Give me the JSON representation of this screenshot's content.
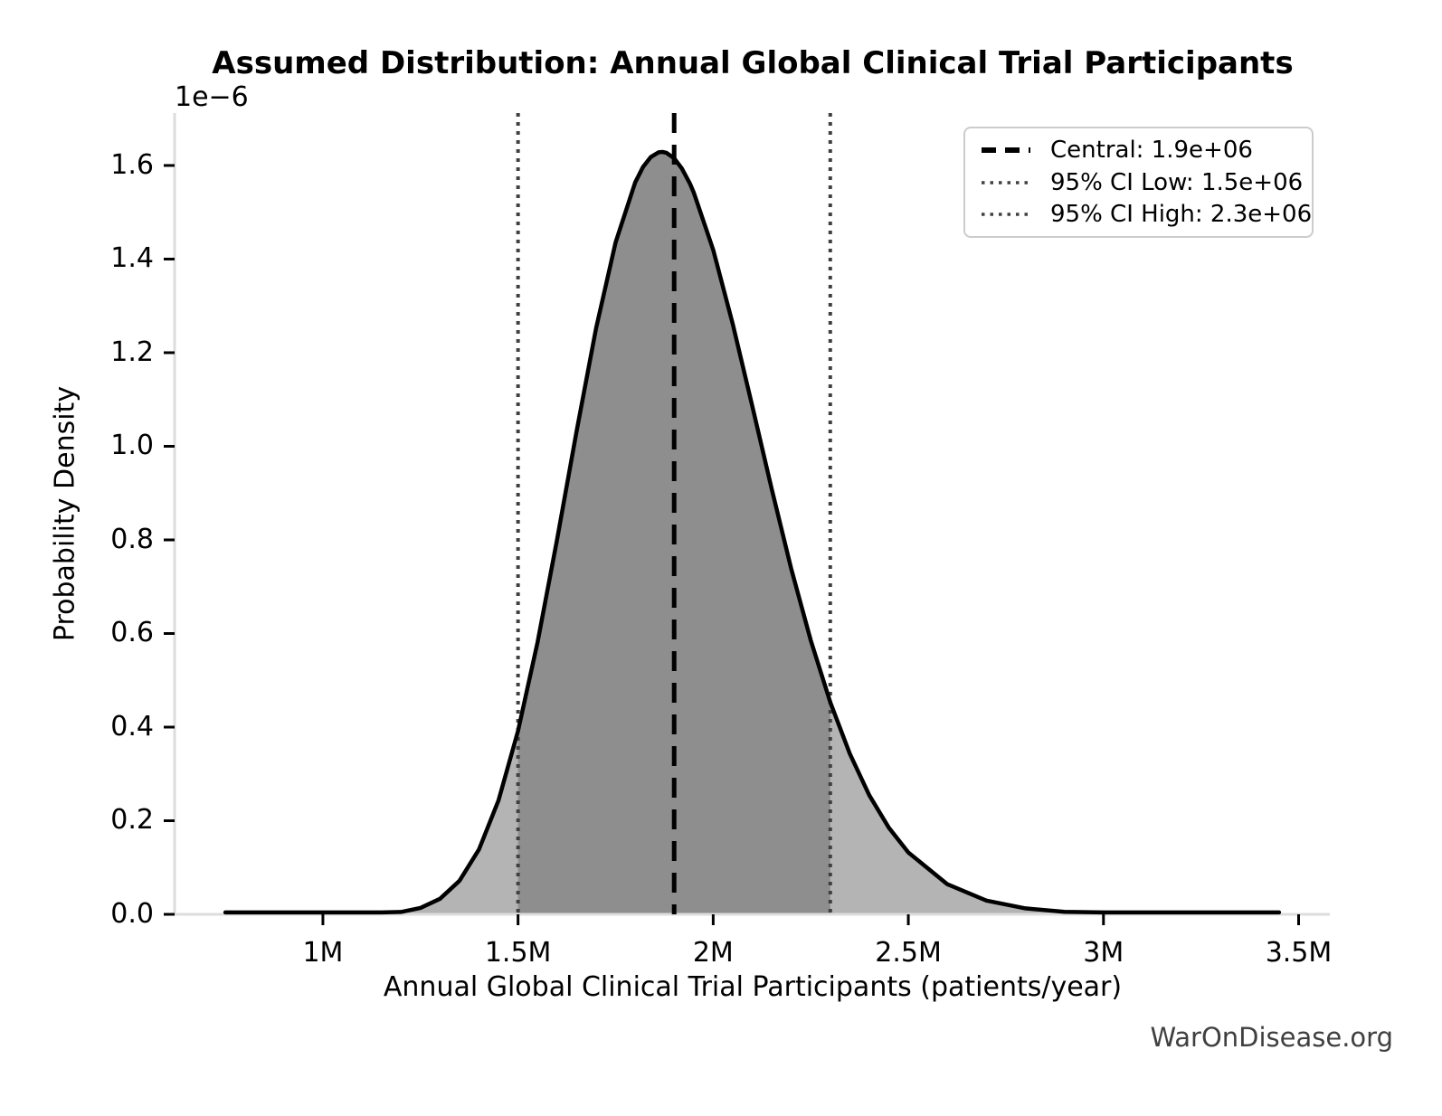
{
  "header": {
    "title": "Assumed Distribution: Annual Global Clinical Trial Participants"
  },
  "axes": {
    "x_label": "Annual Global Clinical Trial Participants (patients/year)",
    "y_label": "Probability Density",
    "y_offset_label": "1e−6"
  },
  "legend": {
    "items": [
      {
        "label": "Central: 1.9e+06",
        "style": "dashed",
        "color": "#000000"
      },
      {
        "label": "95% CI Low: 1.5e+06",
        "style": "dotted",
        "color": "#404040"
      },
      {
        "label": "95% CI High: 2.3e+06",
        "style": "dotted",
        "color": "#404040"
      }
    ]
  },
  "watermark": "WarOnDisease.org",
  "colors": {
    "curve": "#000000",
    "fill_light": "#b4b4b4",
    "fill_dark": "#8e8e8e",
    "central_line": "#000000",
    "ci_line": "#404040",
    "spine": "#dddddd",
    "tick": "#000000",
    "watermark": "#404040",
    "legend_border": "#cccccc"
  },
  "chart_data": {
    "type": "area",
    "title": "Assumed Distribution: Annual Global Clinical Trial Participants",
    "xlabel": "Annual Global Clinical Trial Participants (patients/year)",
    "ylabel": "Probability Density",
    "y_scale_note": "density values in units of 1e-6, y offset label shown as 1e−6",
    "x_unit": "millions of patients/year",
    "xlim": [
      0.62,
      3.58
    ],
    "ylim": [
      0,
      1.712
    ],
    "x_ticks": [
      1,
      1.5,
      2,
      2.5,
      3,
      3.5
    ],
    "x_tick_labels": [
      "1M",
      "1.5M",
      "2M",
      "2.5M",
      "3M",
      "3.5M"
    ],
    "y_ticks": [
      0,
      0.2,
      0.4,
      0.6,
      0.8,
      1.0,
      1.2,
      1.4,
      1.6
    ],
    "y_tick_labels": [
      "0.0",
      "0.2",
      "0.4",
      "0.6",
      "0.8",
      "1.0",
      "1.2",
      "1.4",
      "1.6"
    ],
    "central": 1.9,
    "ci_low": 1.5,
    "ci_high": 2.3,
    "peak_density_1e6": 1.63,
    "peak_x": 1.87,
    "grid": false,
    "legend_position": "upper right",
    "curve": {
      "x": [
        0.75,
        0.9,
        1.0,
        1.05,
        1.1,
        1.15,
        1.2,
        1.25,
        1.3,
        1.35,
        1.4,
        1.45,
        1.5,
        1.55,
        1.6,
        1.65,
        1.7,
        1.75,
        1.8,
        1.82,
        1.84,
        1.86,
        1.87,
        1.88,
        1.9,
        1.92,
        1.94,
        1.95,
        2.0,
        2.05,
        2.1,
        2.15,
        2.2,
        2.25,
        2.3,
        2.35,
        2.4,
        2.45,
        2.5,
        2.6,
        2.7,
        2.8,
        2.9,
        3.0,
        3.1,
        3.2,
        3.3,
        3.45
      ],
      "y": [
        0,
        0,
        0,
        0.0001,
        0.0004,
        0.0015,
        0.005,
        0.0137,
        0.0333,
        0.0717,
        0.1388,
        0.2436,
        0.3916,
        0.581,
        0.8007,
        1.0324,
        1.2521,
        1.4357,
        1.5636,
        1.5965,
        1.6179,
        1.6282,
        1.629,
        1.6271,
        1.6153,
        1.5933,
        1.5619,
        1.5428,
        1.4197,
        1.262,
        1.0866,
        0.9083,
        0.7386,
        0.5855,
        0.4532,
        0.3431,
        0.2544,
        0.1851,
        0.1322,
        0.0643,
        0.0294,
        0.0128,
        0.0053,
        0.0021,
        0.0008,
        0.0003,
        0.0001,
        0
      ]
    }
  }
}
